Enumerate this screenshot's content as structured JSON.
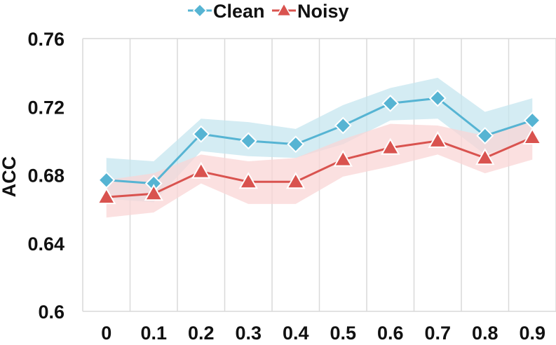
{
  "chart_data": {
    "type": "line",
    "title": "",
    "xlabel": "",
    "ylabel": "ACC",
    "x": [
      "0",
      "0.1",
      "0.2",
      "0.3",
      "0.4",
      "0.5",
      "0.6",
      "0.7",
      "0.8",
      "0.9"
    ],
    "yticks": [
      "0.6",
      "0.64",
      "0.68",
      "0.72",
      "0.76"
    ],
    "ylim": [
      0.6,
      0.76
    ],
    "grid": "vertical",
    "legend_position": "top-center",
    "series": [
      {
        "name": "Clean",
        "marker": "diamond",
        "color": "#56b4d3",
        "band_color": "#c5e6ef",
        "values": [
          0.677,
          0.675,
          0.704,
          0.7,
          0.698,
          0.709,
          0.722,
          0.725,
          0.703,
          0.712
        ],
        "lower": [
          0.666,
          0.664,
          0.694,
          0.691,
          0.69,
          0.698,
          0.712,
          0.713,
          0.692,
          0.701
        ],
        "upper": [
          0.69,
          0.688,
          0.713,
          0.711,
          0.707,
          0.721,
          0.731,
          0.737,
          0.717,
          0.725
        ]
      },
      {
        "name": "Noisy",
        "marker": "triangle",
        "color": "#d9534f",
        "band_color": "#f9d6d6",
        "values": [
          0.667,
          0.669,
          0.682,
          0.676,
          0.676,
          0.689,
          0.696,
          0.7,
          0.69,
          0.702
        ],
        "lower": [
          0.655,
          0.658,
          0.675,
          0.663,
          0.663,
          0.679,
          0.685,
          0.692,
          0.681,
          0.689
        ],
        "upper": [
          0.677,
          0.681,
          0.692,
          0.688,
          0.69,
          0.701,
          0.71,
          0.709,
          0.703,
          0.713
        ]
      }
    ]
  }
}
